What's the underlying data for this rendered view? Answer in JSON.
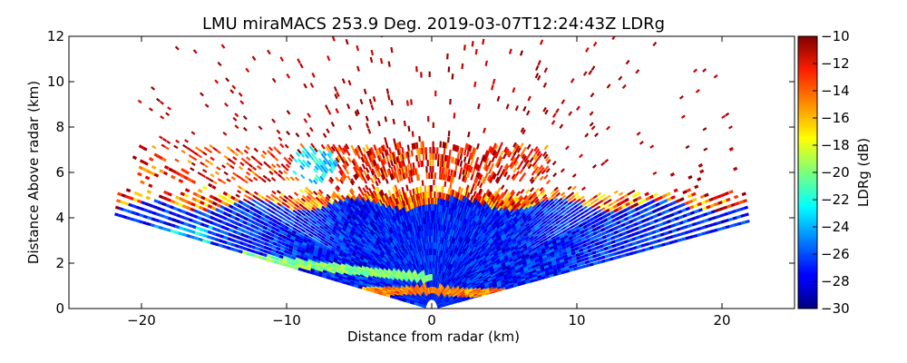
{
  "chart_data": {
    "type": "heatmap",
    "title": "LMU miraMACS 253.9 Deg. 2019-03-07T12:24:43Z  LDRg",
    "xlabel": "Distance from radar (km)",
    "ylabel": "Distance Above radar  (km)",
    "xlim": [
      -25,
      25
    ],
    "ylim": [
      0,
      12
    ],
    "xticks": [
      -20,
      -10,
      0,
      10,
      20
    ],
    "xtick_labels": [
      "−20",
      "−10",
      "0",
      "10",
      "20"
    ],
    "yticks": [
      0,
      2,
      4,
      6,
      8,
      10,
      12
    ],
    "ytick_labels": [
      "0",
      "2",
      "4",
      "6",
      "8",
      "10",
      "12"
    ],
    "colorbar": {
      "label": "LDRg (dB)",
      "vmin": -30,
      "vmax": -10,
      "colormap": "jet",
      "ticks": [
        -10,
        -12,
        -14,
        -16,
        -18,
        -20,
        -22,
        -24,
        -26,
        -28,
        -30
      ],
      "tick_labels": [
        "−10",
        "−12",
        "−14",
        "−16",
        "−18",
        "−20",
        "−22",
        "−24",
        "−26",
        "−28",
        "−30"
      ]
    },
    "scan": {
      "azimuth_deg": 253.9,
      "elevation_range_deg": [
        10,
        170
      ],
      "max_range_km": 22
    },
    "layers": [
      {
        "name": "dense-cloud-layer",
        "x_range": [
          -22,
          22
        ],
        "top_km": 4.5,
        "ldr_db": -27
      },
      {
        "name": "cloud-top-fringe",
        "x_range": [
          -22,
          22
        ],
        "top_km": 5.0,
        "ldr_db": -14
      },
      {
        "name": "mid-level-cloud-band",
        "x_range": [
          -20,
          8
        ],
        "altitude_km": [
          5.5,
          7.0
        ],
        "ldr_db": -13
      },
      {
        "name": "ice-cell",
        "center": [
          -8,
          6.2
        ],
        "ldr_db": -23
      },
      {
        "name": "melting-layer-band",
        "altitude_km": 0.7,
        "ldr_db": -15
      },
      {
        "name": "clutter-streak",
        "altitude_km": [
          3.0,
          1.2
        ],
        "ldr_db": -20
      },
      {
        "name": "sparse-noise",
        "altitude_km": [
          4.5,
          12
        ],
        "ldr_db": -10
      }
    ]
  }
}
